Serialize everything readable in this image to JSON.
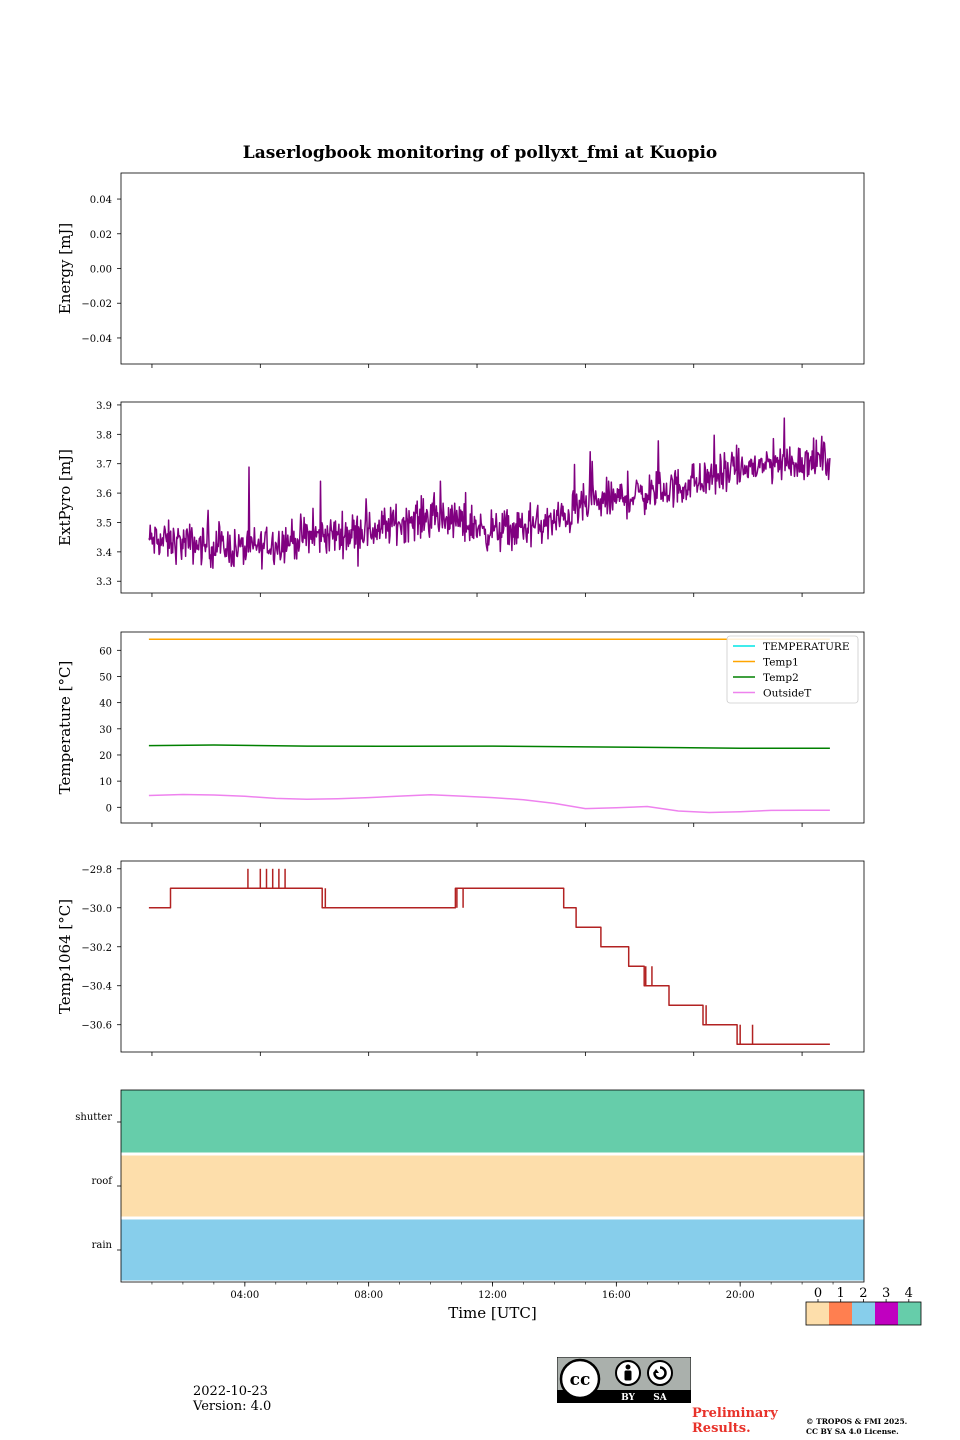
{
  "chart_data": [
    {
      "type": "line",
      "title": "Laserlogbook monitoring of pollyxt_fmi at Kuopio",
      "xlabel": "",
      "ylabel": "Energy [mJ]",
      "ylim": [
        -0.055,
        0.055
      ],
      "yticks": [
        0.04,
        0.02,
        0.0,
        -0.02,
        -0.04
      ],
      "ytick_labels": [
        "0.04",
        "0.02",
        "0.00",
        "−0.02",
        "−0.04"
      ],
      "series": []
    },
    {
      "type": "line",
      "ylabel": "ExtPyro [mJ]",
      "ylim": [
        3.26,
        3.91
      ],
      "yticks": [
        3.3,
        3.4,
        3.5,
        3.6,
        3.7,
        3.8,
        3.9
      ],
      "ytick_labels": [
        "3.3",
        "3.4",
        "3.5",
        "3.6",
        "3.7",
        "3.8",
        "3.9"
      ],
      "series": [
        {
          "name": "ExtPyro",
          "color": "#800080",
          "noise": 0.055,
          "x": [
            0.9,
            2,
            3,
            4,
            5,
            6,
            7,
            8,
            9,
            10,
            11,
            12,
            13,
            14,
            15,
            16,
            17,
            18,
            19,
            20,
            21,
            22,
            22.9
          ],
          "y": [
            3.44,
            3.43,
            3.42,
            3.41,
            3.43,
            3.45,
            3.46,
            3.47,
            3.5,
            3.52,
            3.5,
            3.47,
            3.48,
            3.5,
            3.56,
            3.58,
            3.6,
            3.62,
            3.65,
            3.68,
            3.7,
            3.71,
            3.72
          ]
        }
      ]
    },
    {
      "type": "line",
      "ylabel": "Temperature [°C]",
      "ylim": [
        -6,
        67
      ],
      "yticks": [
        0,
        10,
        20,
        30,
        40,
        50,
        60
      ],
      "ytick_labels": [
        "0",
        "10",
        "20",
        "30",
        "40",
        "50",
        "60"
      ],
      "legend": "top-right",
      "series": [
        {
          "name": "TEMPERATURE",
          "color": "#00e5e5",
          "x": [],
          "y": []
        },
        {
          "name": "Temp1",
          "color": "#ffa500",
          "x": [
            0.9,
            22.9
          ],
          "y": [
            64.2,
            64.2
          ]
        },
        {
          "name": "Temp2",
          "color": "#008000",
          "x": [
            0.9,
            3,
            6,
            9,
            12,
            15,
            18,
            20,
            22.9
          ],
          "y": [
            23.6,
            23.8,
            23.4,
            23.3,
            23.4,
            23.1,
            22.8,
            22.6,
            22.6
          ]
        },
        {
          "name": "OutsideT",
          "color": "#ee82ee",
          "x": [
            0.9,
            2,
            3,
            4,
            5,
            6,
            7,
            8,
            9,
            10,
            11,
            12,
            13,
            14,
            15,
            16,
            17,
            18,
            19,
            20,
            21,
            22,
            22.9
          ],
          "y": [
            4.5,
            4.9,
            4.7,
            4.2,
            3.4,
            3.1,
            3.3,
            3.7,
            4.3,
            4.8,
            4.3,
            3.7,
            2.9,
            1.5,
            -0.5,
            -0.2,
            0.3,
            -1.4,
            -2.0,
            -1.7,
            -1.2,
            -1.1,
            -1.1
          ]
        }
      ]
    },
    {
      "type": "line",
      "ylabel": "Temp1064 [°C]",
      "ylim": [
        -30.74,
        -29.76
      ],
      "yticks": [
        -29.8,
        -30.0,
        -30.2,
        -30.4,
        -30.6
      ],
      "ytick_labels": [
        "−29.8",
        "−30.0",
        "−30.2",
        "−30.4",
        "−30.6"
      ],
      "series": [
        {
          "name": "Temp1064",
          "color": "#b22222",
          "x": [
            0.9,
            1.6,
            1.6,
            2.0,
            6.5,
            6.5,
            7.0,
            10.8,
            10.8,
            11.2,
            14.3,
            14.3,
            14.7,
            14.7,
            15.5,
            15.5,
            16.4,
            16.4,
            16.9,
            16.9,
            17.7,
            17.7,
            18.8,
            18.8,
            19.9,
            19.9,
            22.9
          ],
          "y": [
            -30.0,
            -30.0,
            -29.9,
            -29.9,
            -29.9,
            -30.0,
            -30.0,
            -30.0,
            -29.9,
            -29.9,
            -29.9,
            -30.0,
            -30.0,
            -30.1,
            -30.1,
            -30.2,
            -30.2,
            -30.3,
            -30.3,
            -30.4,
            -30.4,
            -30.5,
            -30.5,
            -30.6,
            -30.6,
            -30.7,
            -30.7
          ]
        }
      ]
    },
    {
      "type": "heatmap",
      "xlabel": "Time [UTC]",
      "xlim": [
        0,
        24
      ],
      "xticks": [
        4,
        8,
        12,
        16,
        20
      ],
      "xtick_labels": [
        "04:00",
        "08:00",
        "12:00",
        "16:00",
        "20:00"
      ],
      "rows": [
        "shutter",
        "roof",
        "rain"
      ],
      "row_values": [
        4,
        0,
        2
      ],
      "colorbar": {
        "ticks": [
          "0",
          "1",
          "2",
          "3",
          "4"
        ],
        "colors": [
          "#fddeab",
          "#ff7f50",
          "#87ceeb",
          "#c000c0",
          "#66cdaa"
        ]
      }
    }
  ],
  "footer": {
    "date": "2022-10-23",
    "version": "Version: 4.0",
    "preliminary_line1": "Preliminary",
    "preliminary_line2": "Results.",
    "copyright_line1": "© TROPOS & FMI 2025.",
    "copyright_line2": "CC BY SA 4.0 License.",
    "license_badge": {
      "cc": "cc",
      "by": "BY",
      "sa": "SA"
    }
  }
}
